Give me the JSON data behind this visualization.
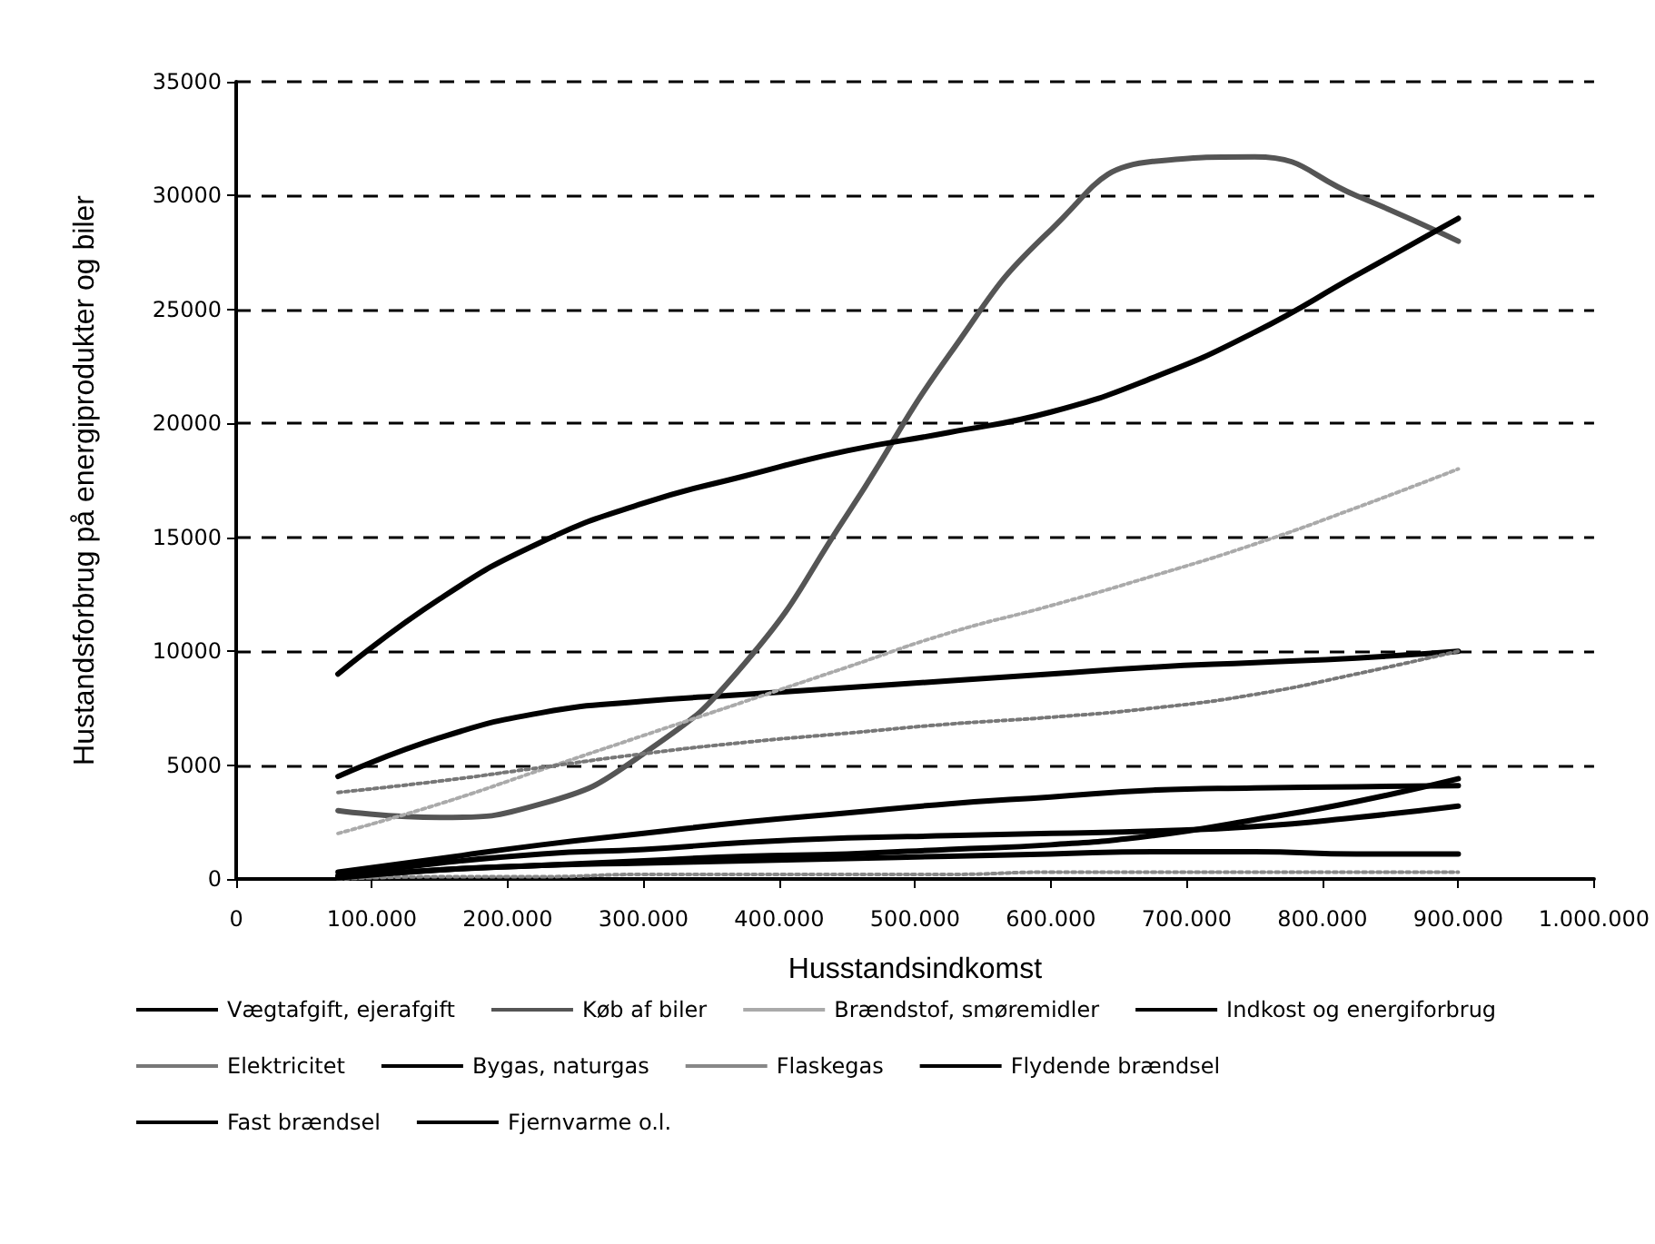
{
  "chart_data": {
    "type": "line",
    "xlabel": "Husstandsindkomst",
    "ylabel": "Hustandsforbrug på energiprodukter og biler",
    "x": [
      75000,
      150000,
      225000,
      300000,
      375000,
      450000,
      525000,
      600000,
      675000,
      750000,
      825000,
      900000
    ],
    "xlim": [
      0,
      1000000
    ],
    "xticks": [
      0,
      {
        "value": 100000,
        "label": "100.000"
      },
      {
        "value": 200000,
        "label": "200.000"
      },
      {
        "value": 300000,
        "label": "300.000"
      },
      {
        "value": 400000,
        "label": "400.000"
      },
      {
        "value": 500000,
        "label": "500.000"
      },
      {
        "value": 600000,
        "label": "600.000"
      },
      {
        "value": 700000,
        "label": "700.000"
      },
      {
        "value": 800000,
        "label": "800.000"
      },
      {
        "value": 900000,
        "label": "900.000"
      },
      {
        "value": 1000000,
        "label": "1.000.000"
      }
    ],
    "ylim": [
      0,
      35000
    ],
    "yticks": [
      0,
      5000,
      10000,
      15000,
      20000,
      25000,
      30000,
      35000
    ],
    "grid": "y",
    "legend": "bottom",
    "marker": "none",
    "series": [
      {
        "name": "Vægtafgift, ejerafgift",
        "color": "#000000",
        "line_style": "solid",
        "values": [
          4500,
          6200,
          7300,
          7800,
          8100,
          8400,
          8700,
          9000,
          9300,
          9500,
          9700,
          10000
        ]
      },
      {
        "name": "Køb af biler",
        "color": "#555555",
        "line_style": "solid",
        "values": [
          3000,
          2700,
          3300,
          5500,
          9500,
          16000,
          23000,
          28500,
          31500,
          31700,
          30000,
          28000
        ]
      },
      {
        "name": "Brændstof, smøremidler",
        "color": "#aaaaaa",
        "line_style": "dotted",
        "values": [
          2000,
          3300,
          4800,
          6300,
          7800,
          9300,
          10800,
          12000,
          13300,
          14700,
          16300,
          18000
        ]
      },
      {
        "name": "Indkost og energiforbrug",
        "color": "#000000",
        "line_style": "solid",
        "values": [
          9000,
          12300,
          14800,
          16500,
          17700,
          18800,
          19600,
          20500,
          22000,
          24000,
          26500,
          29000
        ]
      },
      {
        "name": "Elektricitet",
        "color": "#777777",
        "line_style": "dotted",
        "values": [
          3800,
          4300,
          4900,
          5500,
          6000,
          6400,
          6800,
          7100,
          7500,
          8100,
          9000,
          10000
        ]
      },
      {
        "name": "Bygas, naturgas",
        "color": "#000000",
        "line_style": "solid",
        "values": [
          300,
          900,
          1500,
          2000,
          2500,
          2900,
          3300,
          3600,
          3900,
          4000,
          4050,
          4100
        ]
      },
      {
        "name": "Flaskegas",
        "color": "#888888",
        "line_style": "dotted",
        "values": [
          0,
          100,
          100,
          200,
          200,
          200,
          200,
          300,
          300,
          300,
          300,
          300
        ]
      },
      {
        "name": "Flydende brændsel",
        "color": "#000000",
        "line_style": "solid",
        "values": [
          150,
          700,
          1100,
          1300,
          1600,
          1800,
          1900,
          2000,
          2100,
          2300,
          2700,
          3200
        ]
      },
      {
        "name": "Fast brændsel",
        "color": "#000000",
        "line_style": "solid",
        "values": [
          50,
          400,
          600,
          800,
          1000,
          1100,
          1300,
          1500,
          1900,
          2600,
          3400,
          4400
        ]
      },
      {
        "name": "Fjernvarme o.l.",
        "color": "#000000",
        "line_style": "solid",
        "values": [
          100,
          400,
          600,
          700,
          800,
          900,
          1000,
          1100,
          1200,
          1200,
          1100,
          1100
        ]
      }
    ]
  }
}
